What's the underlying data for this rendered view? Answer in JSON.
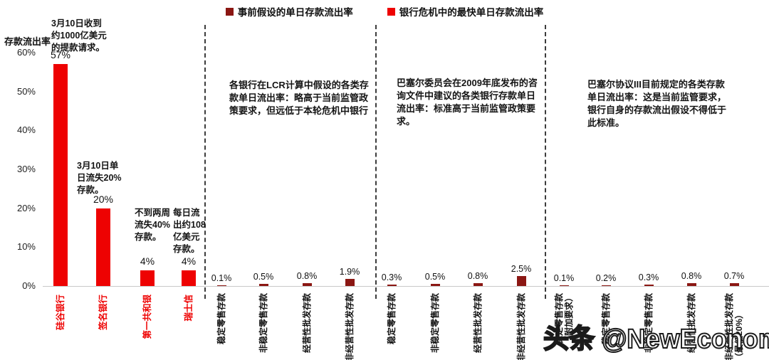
{
  "legend": [
    {
      "label": "事前假设的单日存款流出率",
      "color": "#8B1713"
    },
    {
      "label": "银行危机中的最快单日存款流出率",
      "color": "#EE0202"
    }
  ],
  "y_axis": {
    "title": "存款流出率",
    "ticks": [
      "60%",
      "50%",
      "40%",
      "30%",
      "20%",
      "10%",
      "0%"
    ]
  },
  "annotations": {
    "svb": "3月10日收到\n约1000亿美元\n的提款请求。",
    "signature": "3月10日单\n日流失20%\n存款。",
    "first_republic": "不到两周\n流失40%\n存款。",
    "credit_suisse": "每日流\n出约108\n亿美元\n存款。",
    "lcr": "各银行在LCR计算中假设的各类存款单日流出率：略高于当前监管政策要求，但远低于本轮危机中银行",
    "basel2009": "巴塞尔委员会在2009年底发布的咨询文件中建议的各类银行存款单日流出率：标准高于当前监管政策要求。",
    "basel3": "巴塞尔协议III目前规定的各类存款单日流出率：这是当前监管要求，银行自身的存款流出假设不得低于此标准。"
  },
  "watermark": "头条 @NewEconomist",
  "chart_data": {
    "type": "bar",
    "title": "",
    "ylabel": "存款流出率",
    "ylim": [
      0,
      60
    ],
    "yticks_percent": [
      0,
      10,
      20,
      30,
      40,
      50,
      60
    ],
    "grid": false,
    "legend_position": "top-center",
    "series_legend": [
      "事前假设的单日存款流出率",
      "银行危机中的最快单日存款流出率"
    ],
    "groups": [
      {
        "name": "银行危机中的最快单日存款流出率",
        "color": "#EE0202",
        "categories": [
          "硅谷银行",
          "签名银行",
          "第一共和银",
          "瑞士信"
        ],
        "values": [
          57,
          20,
          4,
          4
        ],
        "labels": [
          "57%",
          "20%",
          "4%",
          "4%"
        ]
      },
      {
        "name": "各银行在LCR计算中假设的单日流出率",
        "color": "#8B1713",
        "categories": [
          "稳定零售存款",
          "非稳定零售存款",
          "经营性批发存款",
          "非经营性批发存款"
        ],
        "values": [
          0.1,
          0.5,
          0.8,
          1.9
        ],
        "labels": [
          "0.1%",
          "0.5%",
          "0.8%",
          "1.9%"
        ]
      },
      {
        "name": "巴塞尔委员会2009年咨询文件建议的单日流出率",
        "color": "#8B1713",
        "categories": [
          "稳定零售存款",
          "非稳定零售存款",
          "经营性批发存款",
          "非经营性批发存款"
        ],
        "values": [
          0.3,
          0.5,
          0.8,
          2.5
        ],
        "labels": [
          "0.3%",
          "0.5%",
          "0.8%",
          "2.5%"
        ]
      },
      {
        "name": "巴塞尔协议III目前规定的单日流出率",
        "color": "#8B1713",
        "categories": [
          "稳定零售存款\n（附加要求）",
          "稳定零售存款",
          "非稳定零售存款",
          "经营性批发存款",
          "非经营性批发存款\n（最低20%）"
        ],
        "values": [
          0.1,
          0.2,
          0.3,
          0.8,
          0.7
        ],
        "labels": [
          "0.1%",
          "0.2%",
          "0.3%",
          "0.8%",
          "0.7%"
        ]
      }
    ]
  }
}
